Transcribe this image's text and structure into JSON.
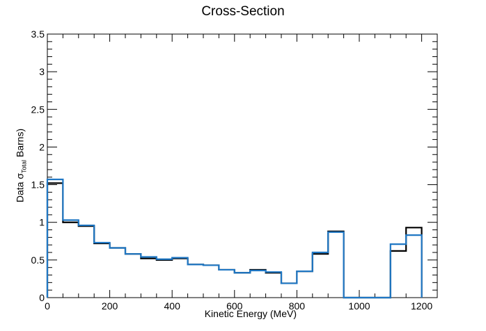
{
  "chart_data": {
    "type": "histogram",
    "title": "Cross-Section",
    "xlabel": "Kinetic Energy (MeV)",
    "ylabel": {
      "prefix": "Data ",
      "symbol": "σ",
      "subscript": "Total",
      "suffix": " Barns)"
    },
    "xlim": [
      0,
      1250
    ],
    "ylim": [
      0,
      3.5
    ],
    "xticks": [
      "0",
      "200",
      "400",
      "600",
      "800",
      "1000",
      "1200"
    ],
    "yticks": [
      "0",
      "0.5",
      "1",
      "1.5",
      "2",
      "2.5",
      "3",
      "3.5"
    ],
    "bin_edges": [
      0,
      50,
      100,
      150,
      200,
      250,
      300,
      350,
      400,
      450,
      500,
      550,
      600,
      650,
      700,
      750,
      800,
      850,
      900,
      950,
      1000,
      1050,
      1100,
      1150,
      1200
    ],
    "series": [
      {
        "color": "#000000",
        "values": [
          1.52,
          1.0,
          0.95,
          0.72,
          0.66,
          0.58,
          0.52,
          0.5,
          0.52,
          0.44,
          0.43,
          0.37,
          0.33,
          0.37,
          0.33,
          0.19,
          0.35,
          0.58,
          0.88,
          0,
          0,
          0,
          0.62,
          0.93
        ]
      },
      {
        "color": "#1f77c4",
        "values": [
          1.57,
          1.03,
          0.96,
          0.73,
          0.66,
          0.58,
          0.54,
          0.51,
          0.53,
          0.44,
          0.43,
          0.37,
          0.33,
          0.36,
          0.34,
          0.19,
          0.35,
          0.6,
          0.87,
          0,
          0,
          0,
          0.71,
          0.83
        ]
      }
    ]
  }
}
